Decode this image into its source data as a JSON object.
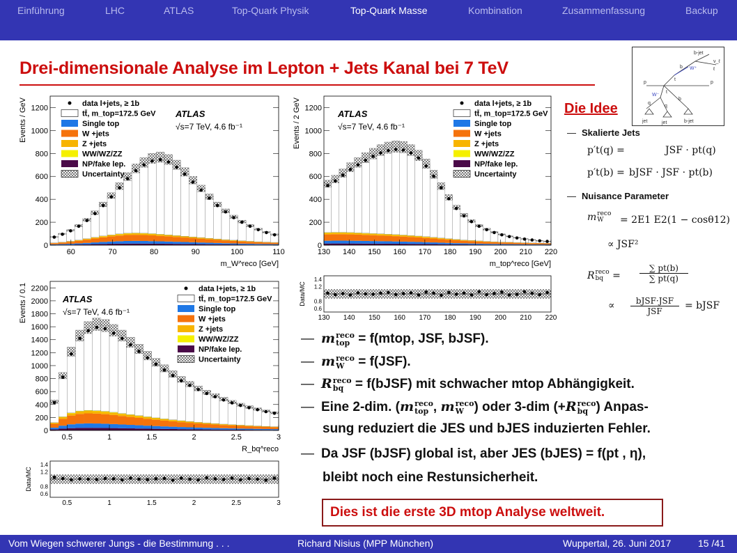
{
  "nav": {
    "tabs": [
      "Einführung",
      "LHC",
      "ATLAS",
      "Top-Quark Physik",
      "Top-Quark Masse",
      "Kombination",
      "Zusammenfassung",
      "Backup"
    ],
    "active_index": 4
  },
  "title": "Drei-dimensionale Analyse im Lepton + Jets Kanal bei 7 TeV",
  "colors": {
    "accent_red": "#cc0e0e",
    "nav_blue": "#3335b3",
    "single_top": "#1f78e6",
    "w_jets": "#f5730c",
    "z_jets": "#f7b400",
    "dibosons": "#f5f000",
    "np_fake": "#4a0a48"
  },
  "feynman": {
    "labels": [
      "b-jet",
      "ν_ℓ",
      "ℓ",
      "W⁺",
      "b",
      "t",
      "p",
      "p",
      "t",
      "W⁻",
      "b",
      "q",
      "q",
      "jet",
      "jet",
      "b-jet"
    ]
  },
  "legend": {
    "data": "data l+jets, ≥ 1b",
    "ttbar": "tt̄, m_top=172.5 GeV",
    "single_top": "Single top",
    "w_jets": "W +jets",
    "z_jets": "Z +jets",
    "dibosons": "WW/WZ/ZZ",
    "np_fake": "NP/fake lep.",
    "uncertainty": "Uncertainty"
  },
  "atlas_label": "ATLAS",
  "energy_label": "√s=7 TeV, 4.6 fb⁻¹",
  "ratio_ylabel": "Data/MC",
  "chart_data": [
    {
      "type": "bar",
      "name_hint": "mW reco distribution",
      "xlabel": "m_W^reco [GeV]",
      "ylabel": "Events / GeV",
      "xlim": [
        55,
        110
      ],
      "ylim": [
        0,
        1300
      ],
      "xticks": [
        60,
        70,
        80,
        90,
        100,
        110
      ],
      "yticks": [
        0,
        200,
        400,
        600,
        800,
        1000,
        1200
      ],
      "x": [
        56,
        58,
        60,
        62,
        64,
        66,
        68,
        70,
        72,
        74,
        76,
        78,
        80,
        82,
        84,
        86,
        88,
        90,
        92,
        94,
        96,
        98,
        100,
        102,
        104,
        106,
        108,
        110
      ],
      "data": [
        70,
        95,
        125,
        165,
        215,
        275,
        345,
        420,
        500,
        580,
        650,
        700,
        735,
        745,
        725,
        680,
        620,
        550,
        480,
        410,
        345,
        290,
        240,
        200,
        165,
        135,
        110,
        90
      ],
      "background_total": [
        20,
        26,
        34,
        44,
        56,
        68,
        80,
        90,
        98,
        104,
        106,
        104,
        100,
        95,
        90,
        84,
        78,
        72,
        66,
        60,
        54,
        48,
        43,
        38,
        34,
        30,
        27,
        24
      ]
    },
    {
      "type": "bar",
      "name_hint": "mtop reco distribution",
      "xlabel": "m_top^reco [GeV]",
      "ylabel": "Events / 2 GeV",
      "xlim": [
        130,
        220
      ],
      "ylim": [
        0,
        1300
      ],
      "xticks": [
        130,
        140,
        150,
        160,
        170,
        180,
        190,
        200,
        210,
        220
      ],
      "yticks": [
        0,
        200,
        400,
        600,
        800,
        1000,
        1200
      ],
      "x": [
        131,
        134,
        137,
        140,
        143,
        146,
        149,
        152,
        155,
        158,
        161,
        164,
        167,
        170,
        173,
        176,
        179,
        182,
        185,
        188,
        191,
        194,
        197,
        200,
        203,
        206,
        209,
        212,
        215,
        218
      ],
      "data": [
        520,
        560,
        610,
        660,
        700,
        740,
        775,
        805,
        825,
        835,
        830,
        805,
        760,
        690,
        600,
        500,
        405,
        320,
        255,
        205,
        165,
        135,
        110,
        90,
        75,
        63,
        53,
        45,
        38,
        33
      ],
      "background_total": [
        110,
        112,
        112,
        110,
        108,
        105,
        102,
        99,
        96,
        92,
        88,
        84,
        79,
        74,
        68,
        62,
        56,
        50,
        45,
        41,
        37,
        33,
        30,
        27,
        25,
        23,
        21,
        19,
        18,
        17
      ],
      "ratio": {
        "ylim": [
          0.5,
          1.5
        ],
        "yticks": [
          0.6,
          0.8,
          1.2,
          1.4
        ],
        "values": [
          1.02,
          0.98,
          1.01,
          0.97,
          1.03,
          1.0,
          0.99,
          1.02,
          1.04,
          0.98,
          1.01,
          1.03,
          0.97,
          1.05,
          1.02,
          0.96,
          1.04,
          0.99,
          1.02,
          0.97,
          1.06,
          0.98,
          1.01,
          1.05,
          0.97,
          0.99,
          1.06,
          1.02,
          0.98,
          1.04
        ]
      }
    },
    {
      "type": "bar",
      "name_hint": "Rbq reco distribution",
      "xlabel": "R_bq^reco",
      "ylabel": "Events / 0.1",
      "xlim": [
        0.3,
        3.0
      ],
      "ylim": [
        0,
        2300
      ],
      "xticks": [
        0.5,
        1,
        1.5,
        2,
        2.5,
        3
      ],
      "yticks": [
        0,
        200,
        400,
        600,
        800,
        1000,
        1200,
        1400,
        1600,
        1800,
        2000,
        2200
      ],
      "x": [
        0.35,
        0.45,
        0.55,
        0.65,
        0.75,
        0.85,
        0.95,
        1.05,
        1.15,
        1.25,
        1.35,
        1.45,
        1.55,
        1.65,
        1.75,
        1.85,
        1.95,
        2.05,
        2.15,
        2.25,
        2.35,
        2.45,
        2.55,
        2.65,
        2.75,
        2.85,
        2.95
      ],
      "data": [
        430,
        820,
        1180,
        1420,
        1540,
        1590,
        1570,
        1500,
        1420,
        1320,
        1220,
        1120,
        1020,
        930,
        845,
        765,
        695,
        630,
        570,
        520,
        470,
        425,
        385,
        350,
        320,
        290,
        265
      ],
      "background_total": [
        120,
        210,
        270,
        300,
        310,
        305,
        295,
        280,
        262,
        245,
        228,
        210,
        194,
        178,
        164,
        150,
        138,
        126,
        116,
        106,
        97,
        89,
        82,
        75,
        69,
        63,
        58
      ],
      "ratio": {
        "ylim": [
          0.5,
          1.5
        ],
        "yticks": [
          0.6,
          0.8,
          1.2,
          1.4
        ],
        "values": [
          1.05,
          1.02,
          0.98,
          1.01,
          1.0,
          0.99,
          1.02,
          1.01,
          0.98,
          1.03,
          1.0,
          0.99,
          1.01,
          1.02,
          0.97,
          1.03,
          1.0,
          0.98,
          1.04,
          1.01,
          0.99,
          1.03,
          0.98,
          1.02,
          1.0,
          0.97,
          1.03
        ]
      }
    }
  ],
  "idee": {
    "heading": "Die Idee",
    "scaled_jets": "Skalierte Jets",
    "nuisance": "Nuisance Parameter",
    "eq1_lhs": "p′t(q) =",
    "eq1_rhs": "JSF · pt(q)",
    "eq2_lhs": "p′t(b) =",
    "eq2_rhs": "bJSF · JSF · pt(b)",
    "eq3": "= 2E1 E2(1 − cosθ12)",
    "eq4": "∝ JSF²",
    "eq5_num": "∑ pt(b)",
    "eq5_den": "∑ pt(q)",
    "eq6_num": "bJSF·JSF",
    "eq6_den": "JSF",
    "eq6_rhs": "= bJSF"
  },
  "bullets": {
    "b1": "= f(mtop, JSF, bJSF).",
    "b2": "= f(JSF).",
    "b3": "= f(bJSF) mit schwacher mtop Abhängigkeit.",
    "b4a": "Eine 2-dim. (",
    "b4b": ") oder 3-dim (+",
    "b4c": ") Anpas-",
    "b4d": "sung reduziert die JES und bJES induzierten Fehler.",
    "b5a": "Da JSF (bJSF) global ist, aber JES (bJES) = f(pt , η),",
    "b5b": "bleibt noch eine Restunsicherheit."
  },
  "highlight": "Dies ist die erste 3D mtop Analyse weltweit.",
  "footer": {
    "left": "Vom Wiegen schwerer Jungs - die Bestimmung . . .",
    "center": "Richard Nisius  (MPP München)",
    "right": "Wuppertal, 26. Juni 2017",
    "page": "15 /41"
  }
}
